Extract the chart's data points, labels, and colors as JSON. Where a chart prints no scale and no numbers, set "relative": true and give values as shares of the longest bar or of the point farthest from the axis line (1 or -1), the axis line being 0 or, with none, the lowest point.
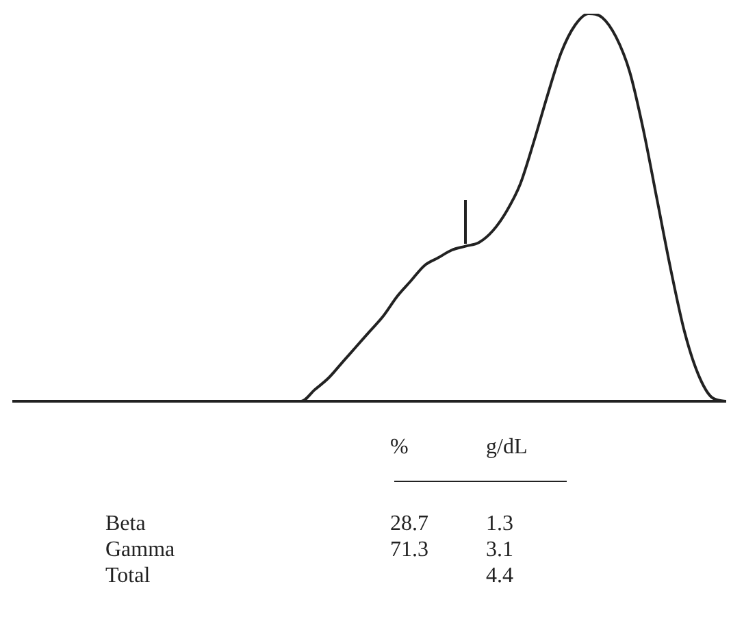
{
  "chart_data": {
    "type": "line",
    "relative": true,
    "color": "#222222",
    "marker": "none",
    "line_style": "solid",
    "grid": false,
    "legend": false,
    "tick_labels": false,
    "categories": [
      null,
      null,
      null,
      null,
      null,
      null,
      null,
      null,
      null,
      null,
      null,
      null,
      null,
      null,
      null,
      null,
      null,
      null,
      null,
      null,
      null,
      null,
      null,
      null,
      null,
      null,
      null,
      null,
      null,
      null,
      null,
      null,
      null,
      null,
      null,
      null,
      null,
      null,
      null,
      null,
      null,
      null,
      null,
      null,
      null,
      null,
      null,
      null,
      null,
      null,
      null,
      null,
      null
    ],
    "values": [
      0,
      0,
      0,
      0,
      0,
      0,
      0,
      0,
      0,
      0,
      0,
      0,
      0,
      0,
      0,
      0,
      0,
      0,
      0,
      0,
      0,
      0,
      0.03,
      0.06,
      0.1,
      0.14,
      0.18,
      0.22,
      0.27,
      0.31,
      0.35,
      0.37,
      0.39,
      0.4,
      0.41,
      0.44,
      0.49,
      0.56,
      0.67,
      0.79,
      0.9,
      0.97,
      1,
      0.99,
      0.94,
      0.85,
      0.7,
      0.52,
      0.34,
      0.18,
      0.07,
      0.01,
      0
    ],
    "annotations": [
      "%",
      "g/dL",
      "Beta",
      "28.7",
      "1.3",
      "Gamma",
      "71.3",
      "3.1",
      "Total",
      "4.4"
    ]
  }
}
